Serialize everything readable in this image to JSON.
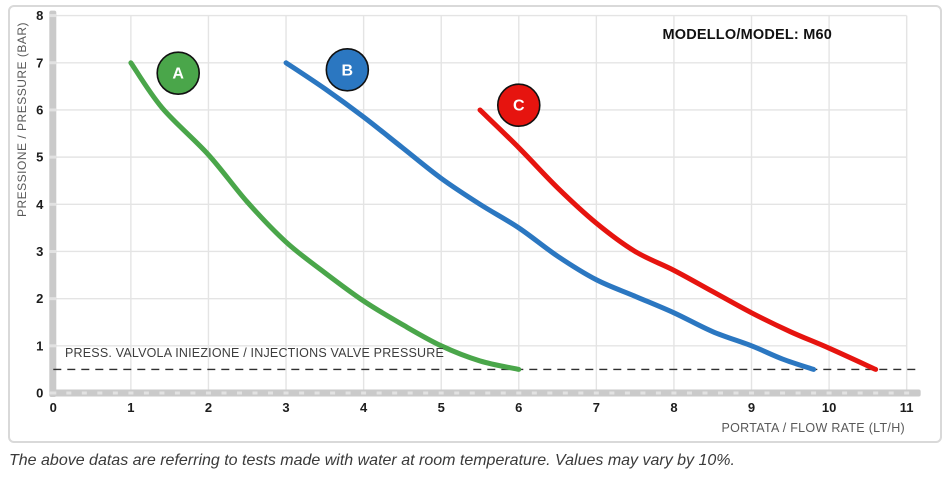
{
  "chart": {
    "model_label": "MODELLO/MODEL: M60",
    "y_axis_label": "PRESSIONE / PRESSURE (BAR)",
    "x_axis_label": "PORTATA / FLOW RATE (LT/H)",
    "annotation": "PRESS. VALVOLA INIEZIONE / INJECTIONS VALVE PRESSURE",
    "caption": "The above datas are referring to tests made with water at room temperature. Values may vary by 10%."
  },
  "chart_data": {
    "type": "line",
    "title": "MODELLO/MODEL: M60",
    "xlabel": "PORTATA / FLOW RATE (LT/H)",
    "ylabel": "PRESSIONE / PRESSURE (BAR)",
    "xlim": [
      0,
      11
    ],
    "ylim": [
      0,
      8
    ],
    "x_ticks": [
      0,
      1,
      2,
      3,
      4,
      5,
      6,
      7,
      8,
      9,
      10,
      11
    ],
    "y_ticks": [
      0,
      1,
      2,
      3,
      4,
      5,
      6,
      7,
      8
    ],
    "grid": true,
    "legend_position": "on-curve-badges",
    "reference_line": {
      "y": 0.5,
      "style": "dashed",
      "label": "PRESS. VALVOLA INIEZIONE / INJECTIONS VALVE PRESSURE"
    },
    "series": [
      {
        "name": "A",
        "color": "#4aa64a",
        "badge": {
          "x": 1.61,
          "y": 6.78
        },
        "points": [
          [
            1.0,
            7.0
          ],
          [
            1.4,
            6.05
          ],
          [
            2.0,
            5.05
          ],
          [
            2.5,
            4.05
          ],
          [
            3.0,
            3.2
          ],
          [
            3.5,
            2.55
          ],
          [
            4.0,
            1.95
          ],
          [
            4.5,
            1.45
          ],
          [
            5.0,
            1.0
          ],
          [
            5.5,
            0.68
          ],
          [
            6.0,
            0.5
          ]
        ]
      },
      {
        "name": "B",
        "color": "#2b77c1",
        "badge": {
          "x": 3.79,
          "y": 6.85
        },
        "points": [
          [
            3.0,
            7.0
          ],
          [
            3.5,
            6.45
          ],
          [
            4.0,
            5.85
          ],
          [
            4.5,
            5.2
          ],
          [
            5.0,
            4.55
          ],
          [
            5.5,
            4.0
          ],
          [
            6.0,
            3.5
          ],
          [
            6.5,
            2.9
          ],
          [
            7.0,
            2.4
          ],
          [
            7.5,
            2.05
          ],
          [
            8.0,
            1.7
          ],
          [
            8.5,
            1.3
          ],
          [
            9.0,
            1.0
          ],
          [
            9.4,
            0.72
          ],
          [
            9.8,
            0.5
          ]
        ]
      },
      {
        "name": "C",
        "color": "#e6140f",
        "badge": {
          "x": 6.0,
          "y": 6.1
        },
        "points": [
          [
            5.5,
            6.0
          ],
          [
            6.0,
            5.2
          ],
          [
            6.5,
            4.35
          ],
          [
            7.0,
            3.6
          ],
          [
            7.5,
            3.0
          ],
          [
            8.0,
            2.6
          ],
          [
            8.5,
            2.15
          ],
          [
            9.0,
            1.7
          ],
          [
            9.5,
            1.3
          ],
          [
            10.0,
            0.95
          ],
          [
            10.6,
            0.5
          ]
        ]
      }
    ]
  },
  "colors": {
    "grid": "#e4e4e4",
    "axis_bar": "#cacaca",
    "axis_bar_nub": "#e2e2e2",
    "card_border": "#d9d9d9",
    "tick_label": "#1d1d1d",
    "axis_title": "#595959",
    "annotation_text": "#3d3d3d",
    "caption_text": "#3a3a3a",
    "dashed_line": "#2f2f2f",
    "badge_letter": "#ffffff",
    "badge_outline": "#111111"
  }
}
